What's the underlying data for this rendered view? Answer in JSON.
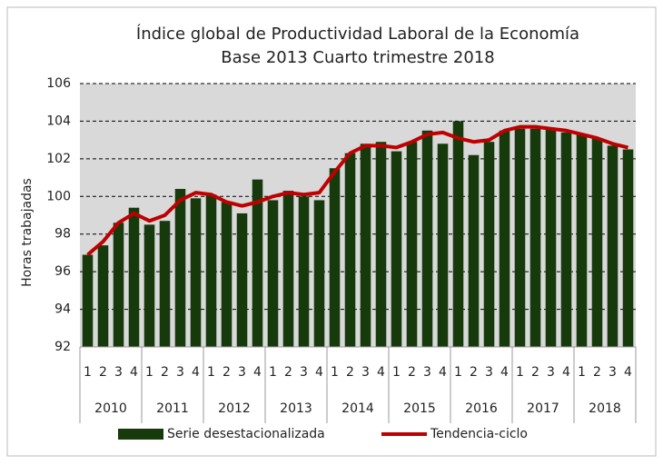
{
  "chart_data": {
    "type": "combo",
    "title": "Índice global de Productividad Laboral de la Economía",
    "subtitle": "Base 2013 Cuarto trimestre 2018",
    "y_label": "Horas trabajadas",
    "categories": [
      "1",
      "2",
      "3",
      "4",
      "1",
      "2",
      "3",
      "4",
      "1",
      "2",
      "3",
      "4",
      "1",
      "2",
      "3",
      "4",
      "1",
      "2",
      "3",
      "4",
      "1",
      "2",
      "3",
      "4",
      "1",
      "2",
      "3",
      "4",
      "1",
      "2",
      "3",
      "4",
      "1",
      "2",
      "3",
      "4"
    ],
    "year_groups": [
      "2010",
      "2011",
      "2012",
      "2013",
      "2014",
      "2015",
      "2016",
      "2017",
      "2018"
    ],
    "series": [
      {
        "name": "Serie desestacionalizada",
        "type": "bar",
        "color": "#173a0d",
        "values": [
          96.9,
          97.4,
          98.6,
          99.4,
          98.5,
          98.7,
          100.4,
          99.9,
          100.1,
          99.7,
          99.1,
          100.9,
          99.8,
          100.3,
          100.0,
          99.8,
          101.5,
          102.3,
          102.8,
          102.9,
          102.4,
          102.9,
          103.5,
          102.8,
          104.0,
          102.2,
          102.9,
          103.5,
          103.6,
          103.6,
          103.6,
          103.4,
          103.3,
          103.1,
          102.7,
          102.5
        ]
      },
      {
        "name": "Tendencia-ciclo",
        "type": "line",
        "color": "#c00000",
        "values": [
          96.9,
          97.6,
          98.6,
          99.1,
          98.7,
          99.0,
          99.8,
          100.2,
          100.1,
          99.7,
          99.5,
          99.7,
          100.0,
          100.2,
          100.1,
          100.2,
          101.3,
          102.3,
          102.7,
          102.7,
          102.6,
          102.9,
          103.3,
          103.4,
          103.1,
          102.9,
          103.0,
          103.5,
          103.7,
          103.7,
          103.6,
          103.5,
          103.3,
          103.1,
          102.8,
          102.6
        ]
      }
    ],
    "ylim": [
      92,
      106
    ],
    "yticks": [
      92,
      94,
      96,
      98,
      100,
      102,
      104,
      106
    ],
    "grid": true,
    "legend": "bottom"
  }
}
